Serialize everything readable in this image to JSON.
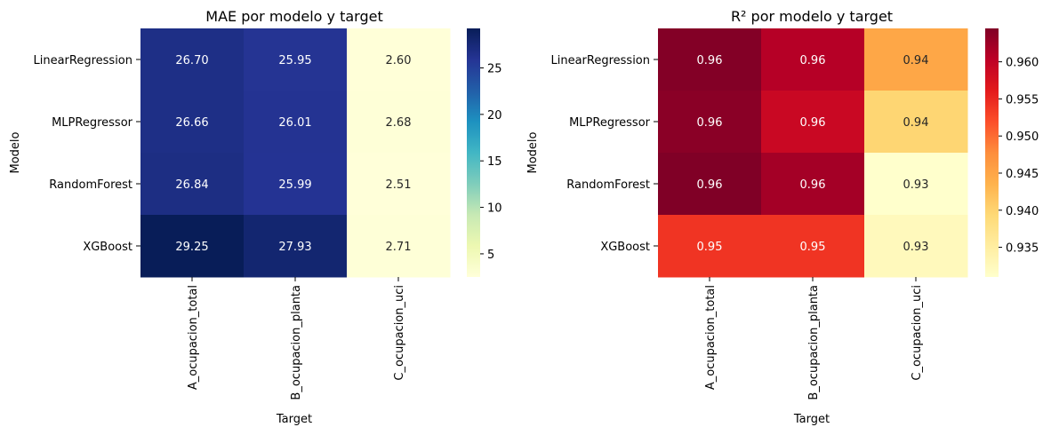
{
  "chart_data": [
    {
      "type": "heatmap",
      "title": "MAE por modelo y target",
      "xlabel": "Target",
      "ylabel": "Modelo",
      "rows": [
        "LinearRegression",
        "MLPRegressor",
        "RandomForest",
        "XGBoost"
      ],
      "columns": [
        "A_ocupacion_total",
        "B_ocupacion_planta",
        "C_ocupacion_uci"
      ],
      "values": [
        [
          26.7,
          25.95,
          2.6
        ],
        [
          26.66,
          26.01,
          2.68
        ],
        [
          26.84,
          25.99,
          2.51
        ],
        [
          29.25,
          27.93,
          2.71
        ]
      ],
      "annotations": [
        [
          "26.70",
          "25.95",
          "2.60"
        ],
        [
          "26.66",
          "26.01",
          "2.68"
        ],
        [
          "26.84",
          "25.99",
          "2.51"
        ],
        [
          "29.25",
          "27.93",
          "2.71"
        ]
      ],
      "colormap": "YlGnBu",
      "colorbar": {
        "vmin": 2.51,
        "vmax": 29.25,
        "ticks": [
          5,
          10,
          15,
          20,
          25
        ],
        "tick_labels": [
          "5",
          "10",
          "15",
          "20",
          "25"
        ]
      }
    },
    {
      "type": "heatmap",
      "title": "R² por modelo y target",
      "xlabel": "Target",
      "ylabel": "Modelo",
      "rows": [
        "LinearRegression",
        "MLPRegressor",
        "RandomForest",
        "XGBoost"
      ],
      "columns": [
        "A_ocupacion_total",
        "B_ocupacion_planta",
        "C_ocupacion_uci"
      ],
      "values": [
        [
          0.9643,
          0.9608,
          0.9448
        ],
        [
          0.9638,
          0.959,
          0.9397
        ],
        [
          0.9645,
          0.962,
          0.931
        ],
        [
          0.954,
          0.954,
          0.9325
        ]
      ],
      "annotations": [
        [
          "0.96",
          "0.96",
          "0.94"
        ],
        [
          "0.96",
          "0.96",
          "0.94"
        ],
        [
          "0.96",
          "0.96",
          "0.93"
        ],
        [
          "0.95",
          "0.95",
          "0.93"
        ]
      ],
      "colormap": "YlOrRd",
      "colorbar": {
        "vmin": 0.931,
        "vmax": 0.9645,
        "ticks": [
          0.935,
          0.94,
          0.945,
          0.95,
          0.955,
          0.96
        ],
        "tick_labels": [
          "0.935",
          "0.940",
          "0.945",
          "0.950",
          "0.955",
          "0.960"
        ]
      }
    }
  ]
}
